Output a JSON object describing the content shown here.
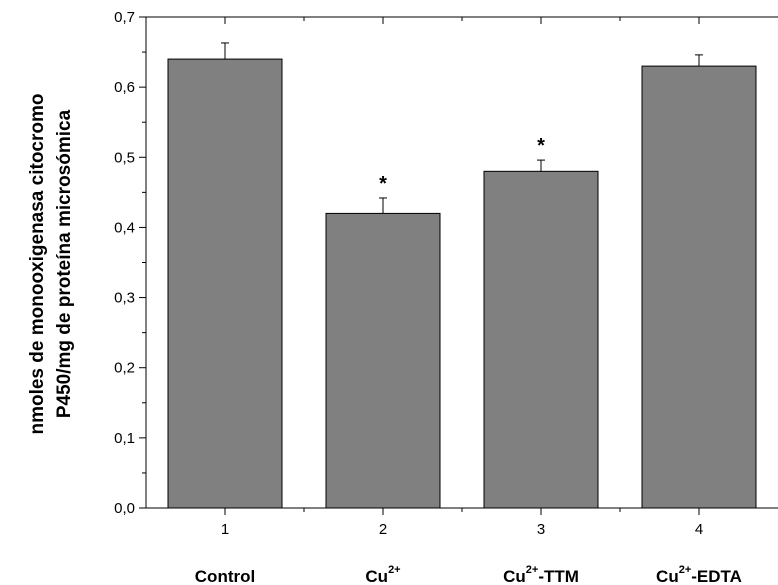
{
  "chart_data": {
    "type": "bar",
    "categories": [
      "1",
      "2",
      "3",
      "4"
    ],
    "group_labels": [
      {
        "base": "Control",
        "sup": "",
        "suffix": ""
      },
      {
        "base": "Cu",
        "sup": "2+",
        "suffix": ""
      },
      {
        "base": "Cu",
        "sup": "2+",
        "suffix": "-TTM"
      },
      {
        "base": "Cu",
        "sup": "2+",
        "suffix": "-EDTA"
      }
    ],
    "values": [
      0.64,
      0.42,
      0.48,
      0.63
    ],
    "errors": [
      0.023,
      0.022,
      0.016,
      0.016
    ],
    "significance": [
      "",
      "*",
      "*",
      ""
    ],
    "ylabel_lines": [
      "nmoles de monooxigenasa citocromo",
      "P450/mg de proteína microsómica"
    ],
    "xlabel": "",
    "ylim": [
      0.0,
      0.7
    ],
    "yticks": [
      "0,0",
      "0,1",
      "0,2",
      "0,3",
      "0,4",
      "0,5",
      "0,6",
      "0,7"
    ],
    "grid": false,
    "bar_color": "#808080",
    "error_color": "#000000"
  }
}
